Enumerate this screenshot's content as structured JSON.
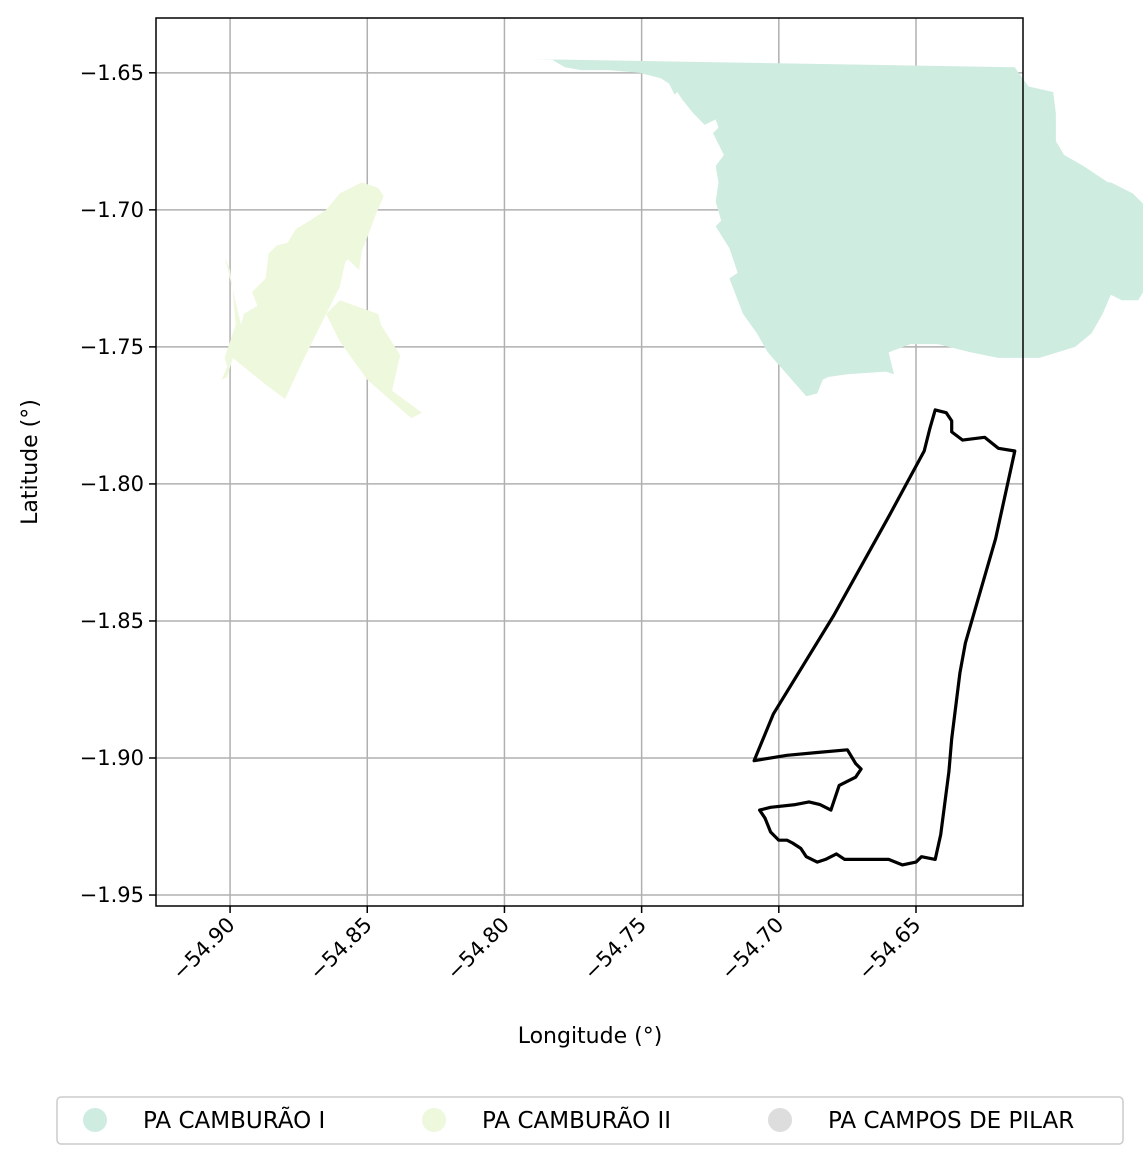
{
  "chart_data": {
    "type": "map",
    "xlabel": "Longitude (°)",
    "ylabel": "Latitude (°)",
    "xlim": [
      -54.927,
      -54.611
    ],
    "ylim": [
      -1.954,
      -1.63
    ],
    "xticks": [
      -54.9,
      -54.85,
      -54.8,
      -54.75,
      -54.7,
      -54.65
    ],
    "xtick_labels": [
      "−54.90",
      "−54.85",
      "−54.80",
      "−54.75",
      "−54.70",
      "−54.65"
    ],
    "yticks": [
      -1.65,
      -1.7,
      -1.75,
      -1.8,
      -1.85,
      -1.9,
      -1.95
    ],
    "ytick_labels": [
      "−1.65",
      "−1.70",
      "−1.75",
      "−1.80",
      "−1.85",
      "−1.90",
      "−1.95"
    ],
    "grid": true,
    "legend_position": "bottom-center",
    "legend": [
      {
        "label": "PA CAMBURÃO I",
        "color": "#cfece0"
      },
      {
        "label": "PA CAMBURÃO II",
        "color": "#eef8dc"
      },
      {
        "label": "PA CAMPOS DE PILAR",
        "color": "#dddddd"
      }
    ],
    "regions": [
      {
        "name": "PA CAMBURÃO I",
        "color": "#cfece0",
        "points": [
          [
            -54.789,
            -1.645
          ],
          [
            -54.783,
            -1.645
          ],
          [
            -54.778,
            -1.648
          ],
          [
            -54.772,
            -1.649
          ],
          [
            -54.762,
            -1.649
          ],
          [
            -54.751,
            -1.65
          ],
          [
            -54.743,
            -1.652
          ],
          [
            -54.74,
            -1.654
          ],
          [
            -54.738,
            -1.658
          ],
          [
            -54.737,
            -1.657
          ],
          [
            -54.735,
            -1.66
          ],
          [
            -54.731,
            -1.665
          ],
          [
            -54.727,
            -1.669
          ],
          [
            -54.725,
            -1.668
          ],
          [
            -54.723,
            -1.667
          ],
          [
            -54.722,
            -1.67
          ],
          [
            -54.724,
            -1.672
          ],
          [
            -54.72,
            -1.68
          ],
          [
            -54.723,
            -1.684
          ],
          [
            -54.722,
            -1.69
          ],
          [
            -54.723,
            -1.697
          ],
          [
            -54.721,
            -1.704
          ],
          [
            -54.723,
            -1.706
          ],
          [
            -54.718,
            -1.714
          ],
          [
            -54.715,
            -1.723
          ],
          [
            -54.718,
            -1.725
          ],
          [
            -54.713,
            -1.738
          ],
          [
            -54.708,
            -1.745
          ],
          [
            -54.704,
            -1.752
          ],
          [
            -54.697,
            -1.76
          ],
          [
            -54.69,
            -1.768
          ],
          [
            -54.686,
            -1.767
          ],
          [
            -54.684,
            -1.762
          ],
          [
            -54.682,
            -1.761
          ],
          [
            -54.675,
            -1.76
          ],
          [
            -54.661,
            -1.759
          ],
          [
            -54.658,
            -1.76
          ],
          [
            -54.66,
            -1.752
          ],
          [
            -54.652,
            -1.749
          ],
          [
            -54.642,
            -1.749
          ],
          [
            -54.63,
            -1.752
          ],
          [
            -54.62,
            -1.754
          ],
          [
            -54.605,
            -1.754
          ],
          [
            -54.592,
            -1.75
          ],
          [
            -54.586,
            -1.745
          ],
          [
            -54.582,
            -1.738
          ],
          [
            -54.579,
            -1.731
          ],
          [
            -54.575,
            -1.733
          ],
          [
            -54.569,
            -1.733
          ],
          [
            -54.566,
            -1.728
          ],
          [
            -54.563,
            -1.733
          ],
          [
            -54.562,
            -1.736
          ],
          [
            -54.557,
            -1.734
          ],
          [
            -54.552,
            -1.73
          ],
          [
            -54.558,
            -1.721
          ],
          [
            -54.564,
            -1.709
          ],
          [
            -54.567,
            -1.704
          ],
          [
            -54.566,
            -1.699
          ],
          [
            -54.571,
            -1.694
          ],
          [
            -54.579,
            -1.69
          ],
          [
            -54.58,
            -1.69
          ],
          [
            -54.589,
            -1.684
          ],
          [
            -54.596,
            -1.68
          ],
          [
            -54.599,
            -1.675
          ],
          [
            -54.599,
            -1.665
          ],
          [
            -54.6,
            -1.657
          ],
          [
            -54.609,
            -1.655
          ],
          [
            -54.614,
            -1.648
          ]
        ]
      },
      {
        "name": "PA CAMBURÃO II",
        "color": "#eef8dc",
        "points": [
          [
            -54.902,
            -1.717
          ],
          [
            -54.9,
            -1.722
          ],
          [
            -54.899,
            -1.73
          ],
          [
            -54.898,
            -1.742
          ],
          [
            -54.902,
            -1.754
          ],
          [
            -54.901,
            -1.757
          ],
          [
            -54.903,
            -1.762
          ],
          [
            -54.907,
            -1.764
          ],
          [
            -54.901,
            -1.761
          ],
          [
            -54.899,
            -1.754
          ],
          [
            -54.888,
            -1.763
          ],
          [
            -54.88,
            -1.769
          ],
          [
            -54.873,
            -1.754
          ],
          [
            -54.866,
            -1.74
          ],
          [
            -54.86,
            -1.728
          ],
          [
            -54.858,
            -1.719
          ],
          [
            -54.857,
            -1.718
          ],
          [
            -54.853,
            -1.722
          ],
          [
            -54.852,
            -1.715
          ],
          [
            -54.85,
            -1.71
          ],
          [
            -54.847,
            -1.702
          ],
          [
            -54.844,
            -1.695
          ],
          [
            -54.846,
            -1.692
          ],
          [
            -54.852,
            -1.69
          ],
          [
            -54.86,
            -1.694
          ],
          [
            -54.865,
            -1.7
          ],
          [
            -54.871,
            -1.704
          ],
          [
            -54.876,
            -1.707
          ],
          [
            -54.879,
            -1.712
          ],
          [
            -54.883,
            -1.713
          ],
          [
            -54.886,
            -1.716
          ],
          [
            -54.887,
            -1.725
          ],
          [
            -54.892,
            -1.73
          ],
          [
            -54.89,
            -1.735
          ],
          [
            -54.895,
            -1.738
          ],
          [
            -54.896,
            -1.742
          ]
        ]
      },
      {
        "name": "PA CAMBURÃO II",
        "color": "#eef8dc",
        "points": [
          [
            -54.86,
            -1.733
          ],
          [
            -54.846,
            -1.738
          ],
          [
            -54.845,
            -1.742
          ],
          [
            -54.838,
            -1.753
          ],
          [
            -54.841,
            -1.766
          ],
          [
            -54.83,
            -1.774
          ],
          [
            -54.834,
            -1.776
          ],
          [
            -54.85,
            -1.762
          ],
          [
            -54.86,
            -1.748
          ],
          [
            -54.865,
            -1.738
          ]
        ]
      }
    ],
    "outline": {
      "name": "PA CAMPOS DE PILAR",
      "color": "#000000",
      "points": [
        [
          -54.643,
          -1.773
        ],
        [
          -54.639,
          -1.774
        ],
        [
          -54.637,
          -1.777
        ],
        [
          -54.637,
          -1.781
        ],
        [
          -54.633,
          -1.784
        ],
        [
          -54.625,
          -1.783
        ],
        [
          -54.62,
          -1.787
        ],
        [
          -54.614,
          -1.788
        ],
        [
          -54.621,
          -1.82
        ],
        [
          -54.632,
          -1.858
        ],
        [
          -54.634,
          -1.869
        ],
        [
          -54.637,
          -1.893
        ],
        [
          -54.638,
          -1.905
        ],
        [
          -54.641,
          -1.928
        ],
        [
          -54.643,
          -1.937
        ],
        [
          -54.648,
          -1.936
        ],
        [
          -54.65,
          -1.938
        ],
        [
          -54.655,
          -1.939
        ],
        [
          -54.66,
          -1.937
        ],
        [
          -54.668,
          -1.937
        ],
        [
          -54.676,
          -1.937
        ],
        [
          -54.679,
          -1.935
        ],
        [
          -54.683,
          -1.937
        ],
        [
          -54.686,
          -1.938
        ],
        [
          -54.69,
          -1.936
        ],
        [
          -54.692,
          -1.933
        ],
        [
          -54.695,
          -1.931
        ],
        [
          -54.697,
          -1.93
        ],
        [
          -54.7,
          -1.93
        ],
        [
          -54.703,
          -1.927
        ],
        [
          -54.705,
          -1.922
        ],
        [
          -54.707,
          -1.919
        ],
        [
          -54.703,
          -1.918
        ],
        [
          -54.694,
          -1.917
        ],
        [
          -54.689,
          -1.916
        ],
        [
          -54.685,
          -1.917
        ],
        [
          -54.681,
          -1.919
        ],
        [
          -54.678,
          -1.91
        ],
        [
          -54.672,
          -1.907
        ],
        [
          -54.67,
          -1.904
        ],
        [
          -54.672,
          -1.902
        ],
        [
          -54.675,
          -1.897
        ],
        [
          -54.686,
          -1.898
        ],
        [
          -54.697,
          -1.899
        ],
        [
          -54.709,
          -1.901
        ],
        [
          -54.702,
          -1.884
        ],
        [
          -54.68,
          -1.848
        ],
        [
          -54.66,
          -1.812
        ],
        [
          -54.647,
          -1.788
        ],
        [
          -54.645,
          -1.78
        ]
      ]
    }
  }
}
